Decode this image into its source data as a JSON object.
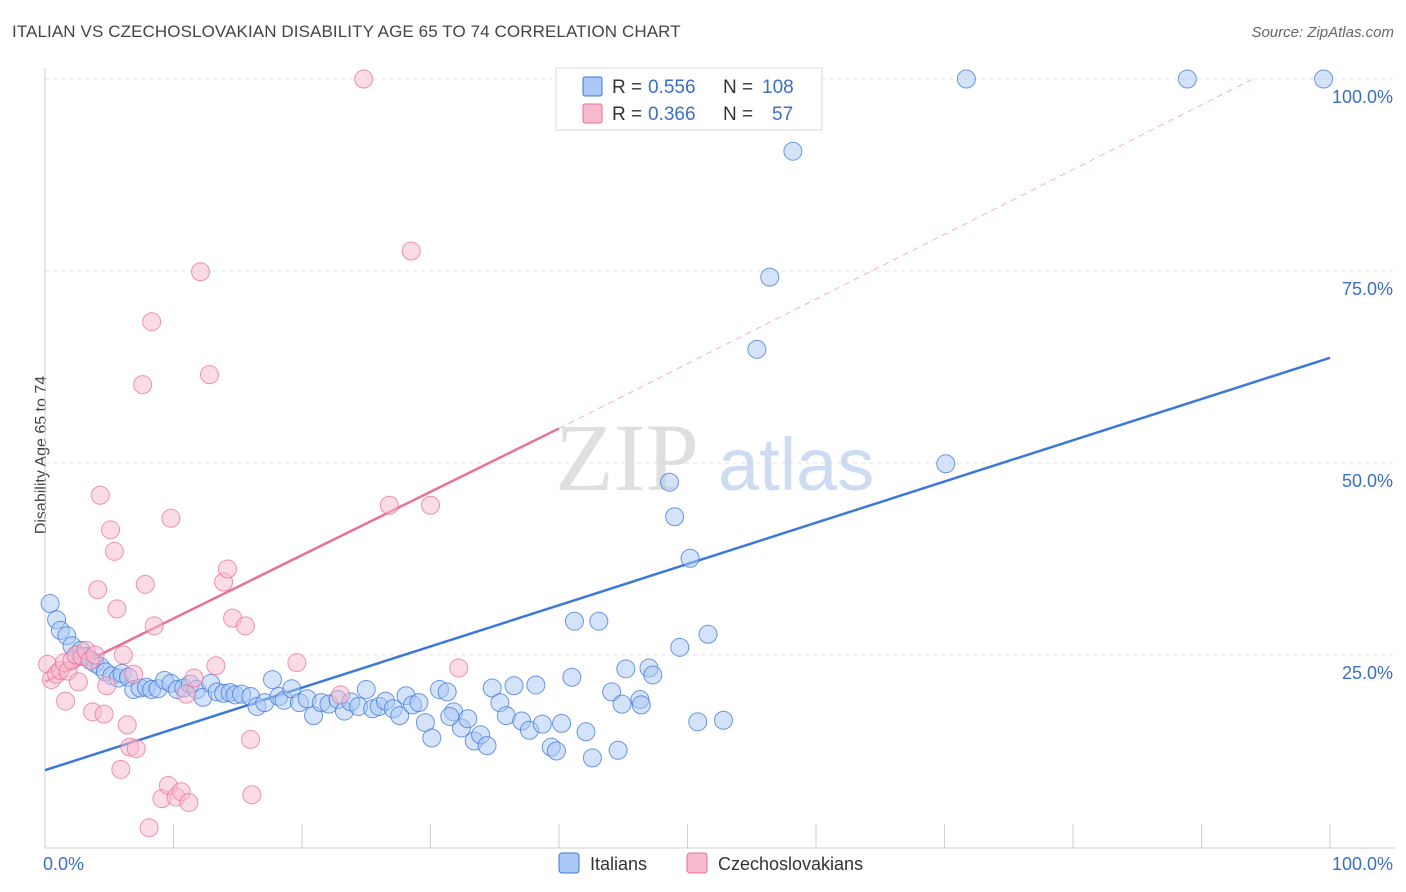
{
  "title": "ITALIAN VS CZECHOSLOVAKIAN DISABILITY AGE 65 TO 74 CORRELATION CHART",
  "source": "Source: ZipAtlas.com",
  "watermark": {
    "zip": "ZIP",
    "atlas": "atlas"
  },
  "colors": {
    "blue": "#3b78d8",
    "blue_fill": "#a9c8f5",
    "pink": "#e8709a",
    "pink_fill": "#f7b9cd",
    "tick": "#3b6fc4"
  },
  "legend": {
    "rows": [
      {
        "r_label": "R = ",
        "r_value": "0.556",
        "n_label": "N = ",
        "n_value": "108"
      },
      {
        "r_label": "R = ",
        "r_value": "0.366",
        "n_label": "N = ",
        "n_value": "57"
      }
    ]
  },
  "chart_data": {
    "type": "scatter",
    "title": "ITALIAN VS CZECHOSLOVAKIAN DISABILITY AGE 65 TO 74 CORRELATION CHART",
    "xlabel": "",
    "ylabel": "Disability Age 65 to 74",
    "xlim": [
      0,
      100
    ],
    "ylim": [
      0,
      102
    ],
    "x_tick_labels": [
      "0.0%",
      "100.0%"
    ],
    "y_ticks": [
      25,
      50,
      75,
      100
    ],
    "y_tick_labels": [
      "25.0%",
      "50.0%",
      "75.0%",
      "100.0%"
    ],
    "grid": true,
    "legend_position": "bottom-center",
    "series": [
      {
        "name": "Italians",
        "color": "#3b78d8",
        "r": 0.556,
        "n": 108,
        "trend": {
          "x": [
            0,
            100
          ],
          "y": [
            10.0,
            63.7
          ]
        },
        "points": [
          [
            0.4,
            31.7
          ],
          [
            0.9,
            29.6
          ],
          [
            1.2,
            28.2
          ],
          [
            1.7,
            27.5
          ],
          [
            2.1,
            26.2
          ],
          [
            2.5,
            25.0
          ],
          [
            2.8,
            25.6
          ],
          [
            3.2,
            24.8
          ],
          [
            3.6,
            24.3
          ],
          [
            3.9,
            23.9
          ],
          [
            4.3,
            23.5
          ],
          [
            4.7,
            22.8
          ],
          [
            5.2,
            22.3
          ],
          [
            5.7,
            22.0
          ],
          [
            6.0,
            22.6
          ],
          [
            6.5,
            22.1
          ],
          [
            6.9,
            20.5
          ],
          [
            7.4,
            20.7
          ],
          [
            7.9,
            20.8
          ],
          [
            8.3,
            20.5
          ],
          [
            8.8,
            20.6
          ],
          [
            9.3,
            21.7
          ],
          [
            9.8,
            21.3
          ],
          [
            10.3,
            20.5
          ],
          [
            10.8,
            20.7
          ],
          [
            11.3,
            21.2
          ],
          [
            11.8,
            20.5
          ],
          [
            12.3,
            19.5
          ],
          [
            12.9,
            21.3
          ],
          [
            13.4,
            20.2
          ],
          [
            13.9,
            20.0
          ],
          [
            14.4,
            20.1
          ],
          [
            14.8,
            19.8
          ],
          [
            15.3,
            19.9
          ],
          [
            16.0,
            19.6
          ],
          [
            16.5,
            18.3
          ],
          [
            17.1,
            18.8
          ],
          [
            17.7,
            21.8
          ],
          [
            18.2,
            19.6
          ],
          [
            18.6,
            19.1
          ],
          [
            19.2,
            20.6
          ],
          [
            19.8,
            18.8
          ],
          [
            20.4,
            19.3
          ],
          [
            20.9,
            17.1
          ],
          [
            21.5,
            18.8
          ],
          [
            22.1,
            18.6
          ],
          [
            22.8,
            19.2
          ],
          [
            23.3,
            17.7
          ],
          [
            23.8,
            18.9
          ],
          [
            24.4,
            18.3
          ],
          [
            25.0,
            20.5
          ],
          [
            25.5,
            18.0
          ],
          [
            26.0,
            18.3
          ],
          [
            26.5,
            19.0
          ],
          [
            27.1,
            18.0
          ],
          [
            27.6,
            17.1
          ],
          [
            28.1,
            19.7
          ],
          [
            28.6,
            18.5
          ],
          [
            29.1,
            18.8
          ],
          [
            29.6,
            16.2
          ],
          [
            30.1,
            14.2
          ],
          [
            30.7,
            20.5
          ],
          [
            31.3,
            20.2
          ],
          [
            31.8,
            17.6
          ],
          [
            32.4,
            15.5
          ],
          [
            32.9,
            16.7
          ],
          [
            33.4,
            13.8
          ],
          [
            33.9,
            14.6
          ],
          [
            34.4,
            13.2
          ],
          [
            34.8,
            20.7
          ],
          [
            35.4,
            18.8
          ],
          [
            35.9,
            17.1
          ],
          [
            36.5,
            21.0
          ],
          [
            37.1,
            16.4
          ],
          [
            37.7,
            15.2
          ],
          [
            38.2,
            21.1
          ],
          [
            38.7,
            16.0
          ],
          [
            39.4,
            13.0
          ],
          [
            39.8,
            12.5
          ],
          [
            40.2,
            16.1
          ],
          [
            41.0,
            22.1
          ],
          [
            41.2,
            29.4
          ],
          [
            42.1,
            15.0
          ],
          [
            42.6,
            11.6
          ],
          [
            43.1,
            29.4
          ],
          [
            44.1,
            20.2
          ],
          [
            44.6,
            12.6
          ],
          [
            44.9,
            18.6
          ],
          [
            45.2,
            23.2
          ],
          [
            46.3,
            19.2
          ],
          [
            46.4,
            18.5
          ],
          [
            47.0,
            23.3
          ],
          [
            47.3,
            22.4
          ],
          [
            48.6,
            47.5
          ],
          [
            49.0,
            43.0
          ],
          [
            49.4,
            26.0
          ],
          [
            50.2,
            37.6
          ],
          [
            50.8,
            16.3
          ],
          [
            51.6,
            27.7
          ],
          [
            52.8,
            16.5
          ],
          [
            55.4,
            64.8
          ],
          [
            56.4,
            74.2
          ],
          [
            58.2,
            90.6
          ],
          [
            70.1,
            49.9
          ],
          [
            71.7,
            100
          ],
          [
            88.9,
            100
          ],
          [
            99.5,
            100
          ],
          [
            31.5,
            17.0
          ]
        ]
      },
      {
        "name": "Czechoslovakians",
        "color": "#e8709a",
        "r": 0.366,
        "n": 57,
        "trend": {
          "x": [
            0,
            40
          ],
          "y": [
            21.5,
            54.5
          ]
        },
        "trend_extension": {
          "x": [
            40,
            94
          ],
          "y": [
            54.5,
            100
          ]
        },
        "points": [
          [
            0.2,
            23.8
          ],
          [
            0.5,
            21.8
          ],
          [
            0.9,
            22.5
          ],
          [
            1.2,
            23.0
          ],
          [
            1.5,
            24.0
          ],
          [
            1.8,
            22.9
          ],
          [
            2.1,
            24.3
          ],
          [
            2.4,
            25.0
          ],
          [
            2.6,
            21.5
          ],
          [
            2.9,
            24.8
          ],
          [
            3.2,
            25.6
          ],
          [
            3.5,
            24.3
          ],
          [
            3.7,
            17.6
          ],
          [
            3.9,
            25.0
          ],
          [
            4.1,
            33.5
          ],
          [
            4.3,
            45.8
          ],
          [
            4.6,
            17.3
          ],
          [
            4.8,
            21.0
          ],
          [
            5.1,
            41.3
          ],
          [
            5.4,
            38.5
          ],
          [
            5.6,
            31.0
          ],
          [
            5.9,
            10.1
          ],
          [
            6.1,
            25.0
          ],
          [
            6.4,
            15.9
          ],
          [
            6.6,
            13.0
          ],
          [
            7.1,
            12.8
          ],
          [
            7.6,
            60.2
          ],
          [
            7.8,
            34.2
          ],
          [
            8.1,
            2.5
          ],
          [
            8.3,
            68.4
          ],
          [
            8.5,
            28.8
          ],
          [
            9.1,
            6.3
          ],
          [
            9.6,
            8.0
          ],
          [
            9.8,
            42.8
          ],
          [
            10.2,
            6.5
          ],
          [
            10.6,
            7.2
          ],
          [
            11.0,
            19.9
          ],
          [
            11.2,
            5.8
          ],
          [
            11.6,
            22.0
          ],
          [
            12.1,
            74.9
          ],
          [
            12.8,
            61.5
          ],
          [
            13.3,
            23.6
          ],
          [
            13.9,
            34.5
          ],
          [
            14.2,
            36.2
          ],
          [
            14.6,
            29.8
          ],
          [
            15.6,
            28.8
          ],
          [
            16.0,
            14.0
          ],
          [
            16.1,
            6.8
          ],
          [
            19.6,
            24.0
          ],
          [
            23.0,
            19.8
          ],
          [
            24.8,
            100
          ],
          [
            26.8,
            44.5
          ],
          [
            28.5,
            77.6
          ],
          [
            30.0,
            44.5
          ],
          [
            32.2,
            23.3
          ],
          [
            1.6,
            19.0
          ],
          [
            6.9,
            22.5
          ]
        ]
      }
    ]
  },
  "bottom_legend": {
    "items": [
      "Italians",
      "Czechoslovakians"
    ]
  }
}
